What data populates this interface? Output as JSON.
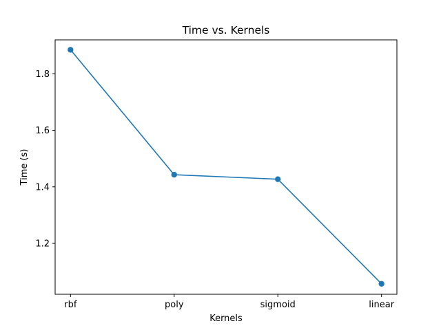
{
  "chart_data": {
    "type": "line",
    "title": "Time vs. Kernels",
    "xlabel": "Kernels",
    "ylabel": "Time (s)",
    "categories": [
      "rbf",
      "poly",
      "sigmoid",
      "linear"
    ],
    "series": [
      {
        "values": [
          1.885,
          1.443,
          1.427,
          1.057
        ],
        "color": "#1f77b4",
        "marker": "circle"
      }
    ],
    "ylim": [
      1.02,
      1.92
    ],
    "yticks": [
      1.2,
      1.4,
      1.6,
      1.8
    ],
    "ytick_labels": [
      "1.2",
      "1.4",
      "1.6",
      "1.8"
    ],
    "grid": false,
    "legend": "none"
  }
}
